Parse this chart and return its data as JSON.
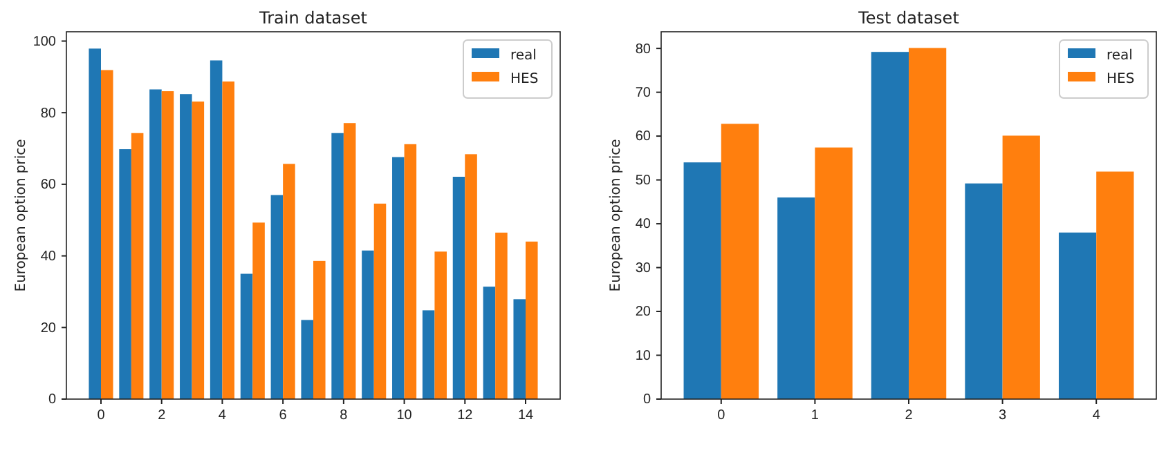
{
  "chart_data": [
    {
      "type": "bar",
      "title": "Train dataset",
      "ylabel": "European option price",
      "x": [
        0,
        1,
        2,
        3,
        4,
        5,
        6,
        7,
        8,
        9,
        10,
        11,
        12,
        13,
        14
      ],
      "xlim": [
        -1.14,
        15.14
      ],
      "xticks": [
        0,
        2,
        4,
        6,
        8,
        10,
        12,
        14
      ],
      "ylim": [
        0,
        102.6
      ],
      "yticks": [
        0,
        20,
        40,
        60,
        80,
        100
      ],
      "legend": "top right",
      "grid": false,
      "series": [
        {
          "name": "real",
          "color": "#1f77b4",
          "values": [
            97.9,
            69.8,
            86.5,
            85.2,
            94.6,
            35.0,
            57.0,
            22.1,
            74.3,
            41.5,
            67.6,
            24.8,
            62.1,
            31.4,
            27.9
          ]
        },
        {
          "name": "HES",
          "color": "#ff7f0e",
          "values": [
            91.9,
            74.3,
            86.0,
            83.1,
            88.7,
            49.3,
            65.7,
            38.6,
            77.1,
            54.6,
            71.2,
            41.2,
            68.4,
            46.5,
            44.0
          ]
        }
      ]
    },
    {
      "type": "bar",
      "title": "Test dataset",
      "ylabel": "European option price",
      "x": [
        0,
        1,
        2,
        3,
        4
      ],
      "xlim": [
        -0.64,
        4.64
      ],
      "xticks": [
        0,
        1,
        2,
        3,
        4
      ],
      "ylim": [
        0,
        83.8
      ],
      "yticks": [
        0,
        10,
        20,
        30,
        40,
        50,
        60,
        70,
        80
      ],
      "legend": "top right",
      "grid": false,
      "series": [
        {
          "name": "real",
          "color": "#1f77b4",
          "values": [
            54.0,
            46.0,
            79.2,
            49.2,
            38.0
          ]
        },
        {
          "name": "HES",
          "color": "#ff7f0e",
          "values": [
            62.8,
            57.4,
            80.1,
            60.1,
            51.9
          ]
        }
      ]
    }
  ]
}
